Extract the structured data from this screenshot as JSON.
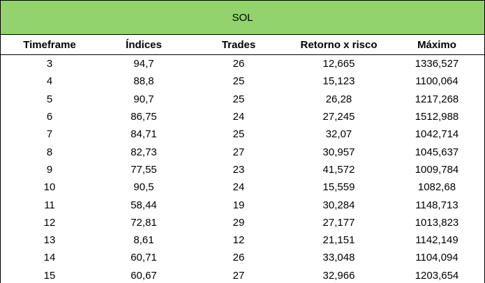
{
  "title": "SOL",
  "columns": [
    "Timeframe",
    "Índices",
    "Trades",
    "Retorno x risco",
    "Máximo"
  ],
  "rows": [
    [
      "3",
      "94,7",
      "26",
      "12,665",
      "1336,527"
    ],
    [
      "4",
      "88,8",
      "25",
      "15,123",
      "1100,064"
    ],
    [
      "5",
      "90,7",
      "25",
      "26,28",
      "1217,268"
    ],
    [
      "6",
      "86,75",
      "24",
      "27,245",
      "1512,988"
    ],
    [
      "7",
      "84,71",
      "25",
      "32,07",
      "1042,714"
    ],
    [
      "8",
      "82,73",
      "27",
      "30,957",
      "1045,637"
    ],
    [
      "9",
      "77,55",
      "23",
      "41,572",
      "1009,784"
    ],
    [
      "10",
      "90,5",
      "24",
      "15,559",
      "1082,68"
    ],
    [
      "11",
      "58,44",
      "19",
      "30,284",
      "1148,713"
    ],
    [
      "12",
      "72,81",
      "29",
      "27,177",
      "1013,823"
    ],
    [
      "13",
      "8,61",
      "12",
      "21,151",
      "1142,149"
    ],
    [
      "14",
      "60,71",
      "26",
      "33,048",
      "1104,094"
    ],
    [
      "15",
      "60,67",
      "27",
      "32,966",
      "1203,654"
    ]
  ],
  "colors": {
    "header_fill": "#92d36e",
    "border": "#000000"
  }
}
